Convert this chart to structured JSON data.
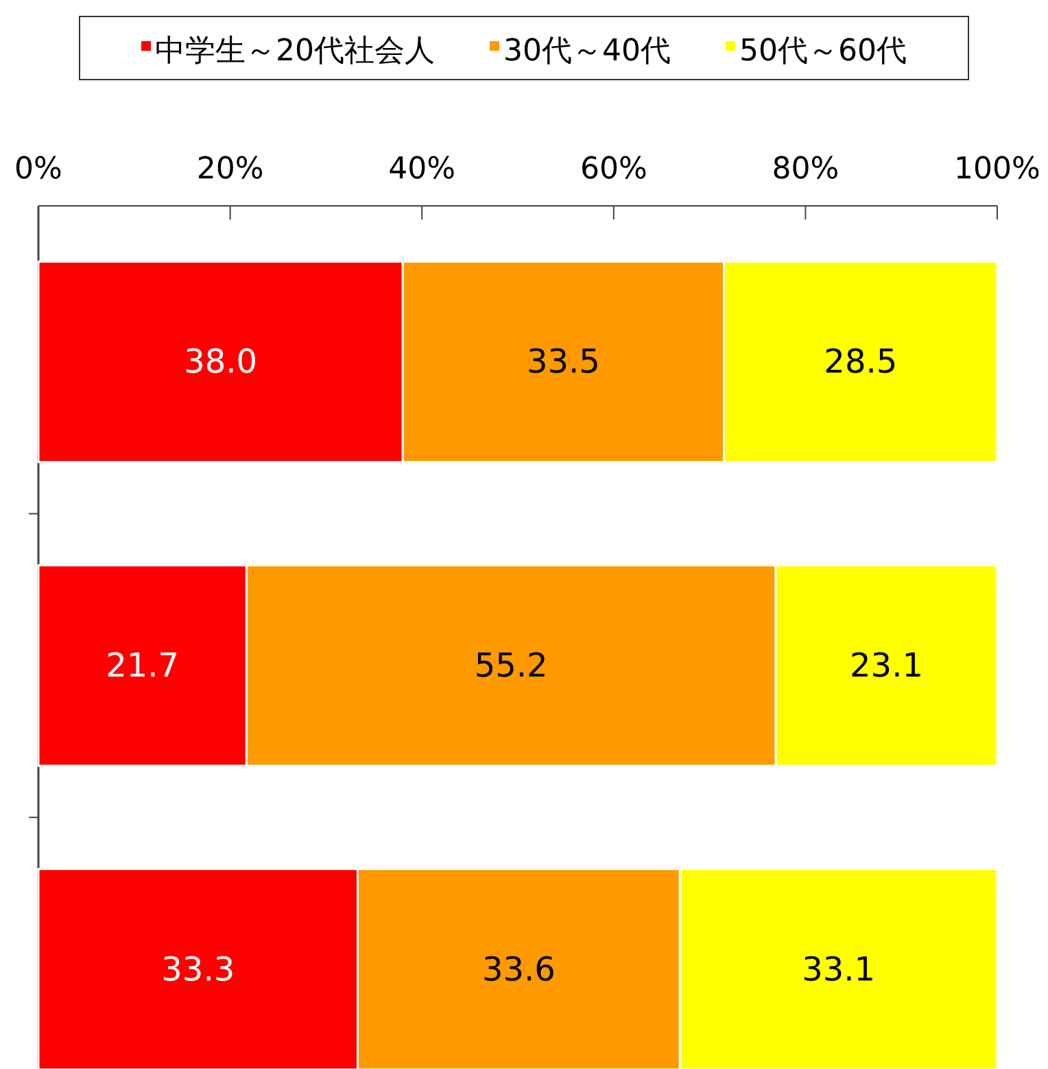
{
  "chart_data": {
    "type": "bar",
    "orientation": "horizontal",
    "stacked": true,
    "categories": [
      null,
      null,
      null
    ],
    "series": [
      {
        "name": "中学生～20代社会人",
        "color": "#ff0000",
        "values": [
          38.0,
          21.7,
          33.3
        ],
        "value_labels": [
          "38.0",
          "21.7",
          "33.3"
        ]
      },
      {
        "name": "30代～40代",
        "color": "#ff9900",
        "values": [
          33.5,
          55.2,
          33.6
        ],
        "value_labels": [
          "33.5",
          "55.2",
          "33.6"
        ]
      },
      {
        "name": "50代～60代",
        "color": "#ffff00",
        "values": [
          28.5,
          23.1,
          33.1
        ],
        "value_labels": [
          "28.5",
          "23.1",
          "33.1"
        ]
      }
    ],
    "xlim": [
      0,
      100
    ],
    "xticks": [
      {
        "value": 0,
        "label": "0%"
      },
      {
        "value": 20,
        "label": "20%"
      },
      {
        "value": 40,
        "label": "40%"
      },
      {
        "value": 60,
        "label": "60%"
      },
      {
        "value": 80,
        "label": "80%"
      },
      {
        "value": 100,
        "label": "100%"
      }
    ],
    "grid": false,
    "legend": "top"
  }
}
